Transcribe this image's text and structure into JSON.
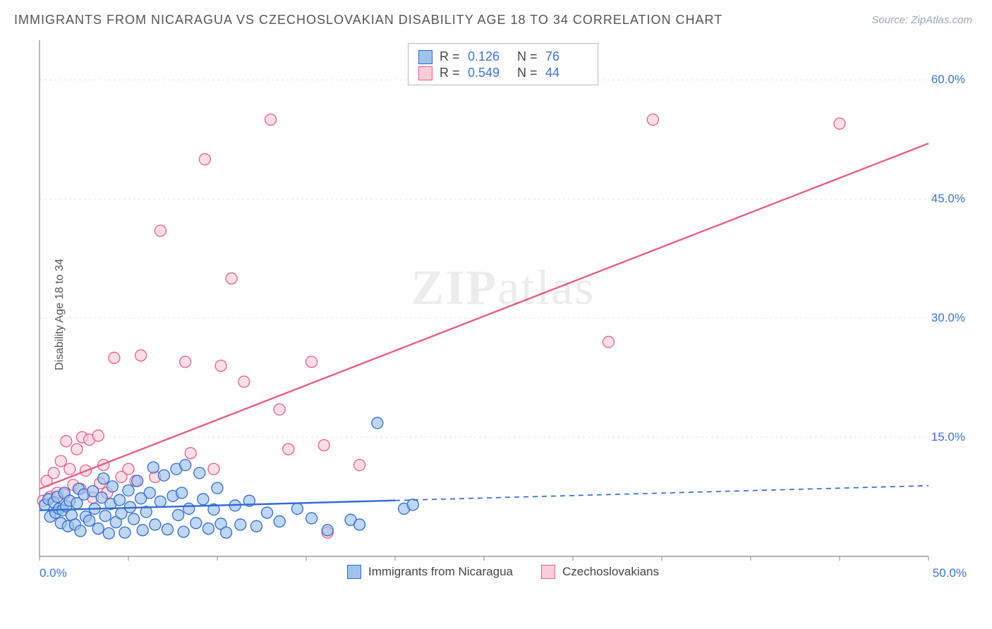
{
  "title": "IMMIGRANTS FROM NICARAGUA VS CZECHOSLOVAKIAN DISABILITY AGE 18 TO 34 CORRELATION CHART",
  "source_label": "Source: ",
  "source_site": "ZipAtlas.com",
  "ylabel": "Disability Age 18 to 34",
  "watermark_a": "ZIP",
  "watermark_b": "atlas",
  "chart": {
    "type": "scatter",
    "xlim": [
      0,
      50
    ],
    "ylim": [
      0,
      65
    ],
    "xmin_label": "0.0%",
    "xmax_label": "50.0%",
    "yticks": [
      {
        "v": 15,
        "label": "15.0%"
      },
      {
        "v": 30,
        "label": "30.0%"
      },
      {
        "v": 45,
        "label": "45.0%"
      },
      {
        "v": 60,
        "label": "60.0%"
      }
    ],
    "xticks_minor": [
      0,
      5,
      10,
      15,
      20,
      25,
      30,
      35,
      40,
      45,
      50
    ],
    "background_color": "#ffffff",
    "grid_color": "#e3e3e3",
    "axis_color": "#888888",
    "marker_radius": 8,
    "marker_stroke_width": 1.3,
    "colors": {
      "blue_fill": "#9ec2ec",
      "blue_stroke": "#2f6bd0",
      "pink_fill": "#fbcdd8",
      "pink_stroke": "#e85f88"
    },
    "series": [
      {
        "key": "nicaragua",
        "label": "Immigrants from Nicaragua",
        "color_fill": "#9ec2ec",
        "color_stroke": "#2f6bd0",
        "R": "0.126",
        "N": "76",
        "trend": {
          "x1": 0,
          "y1": 5.8,
          "x2": 50,
          "y2": 8.9,
          "solid_until_x": 20,
          "width": 2.4
        },
        "points": [
          [
            0.3,
            6.5
          ],
          [
            0.5,
            7.2
          ],
          [
            0.6,
            5.0
          ],
          [
            0.8,
            6.8
          ],
          [
            0.9,
            5.5
          ],
          [
            1.0,
            7.5
          ],
          [
            1.1,
            6.0
          ],
          [
            1.2,
            4.2
          ],
          [
            1.3,
            5.8
          ],
          [
            1.4,
            8.0
          ],
          [
            1.5,
            6.3
          ],
          [
            1.6,
            3.8
          ],
          [
            1.7,
            7.0
          ],
          [
            1.8,
            5.2
          ],
          [
            2.0,
            4.0
          ],
          [
            2.1,
            6.7
          ],
          [
            2.2,
            8.5
          ],
          [
            2.3,
            3.2
          ],
          [
            2.5,
            7.8
          ],
          [
            2.6,
            5.0
          ],
          [
            2.8,
            4.5
          ],
          [
            3.0,
            8.2
          ],
          [
            3.1,
            6.0
          ],
          [
            3.3,
            3.5
          ],
          [
            3.5,
            7.4
          ],
          [
            3.6,
            9.8
          ],
          [
            3.7,
            5.1
          ],
          [
            3.9,
            2.9
          ],
          [
            4.0,
            6.6
          ],
          [
            4.1,
            8.8
          ],
          [
            4.3,
            4.3
          ],
          [
            4.5,
            7.1
          ],
          [
            4.6,
            5.4
          ],
          [
            4.8,
            3.0
          ],
          [
            5.0,
            8.3
          ],
          [
            5.1,
            6.2
          ],
          [
            5.3,
            4.7
          ],
          [
            5.5,
            9.5
          ],
          [
            5.7,
            7.3
          ],
          [
            5.8,
            3.3
          ],
          [
            6.0,
            5.6
          ],
          [
            6.2,
            8.0
          ],
          [
            6.4,
            11.2
          ],
          [
            6.5,
            4.0
          ],
          [
            6.8,
            6.9
          ],
          [
            7.0,
            10.2
          ],
          [
            7.2,
            3.4
          ],
          [
            7.5,
            7.6
          ],
          [
            7.7,
            11.0
          ],
          [
            7.8,
            5.2
          ],
          [
            8.0,
            8.0
          ],
          [
            8.1,
            3.1
          ],
          [
            8.2,
            11.5
          ],
          [
            8.4,
            6.0
          ],
          [
            8.8,
            4.2
          ],
          [
            9.0,
            10.5
          ],
          [
            9.2,
            7.2
          ],
          [
            9.5,
            3.5
          ],
          [
            9.8,
            5.9
          ],
          [
            10.0,
            8.6
          ],
          [
            10.2,
            4.1
          ],
          [
            10.5,
            3.0
          ],
          [
            11.0,
            6.4
          ],
          [
            11.3,
            4.0
          ],
          [
            11.8,
            7.0
          ],
          [
            12.2,
            3.8
          ],
          [
            12.8,
            5.5
          ],
          [
            13.5,
            4.4
          ],
          [
            14.5,
            6.0
          ],
          [
            15.3,
            4.8
          ],
          [
            16.2,
            3.3
          ],
          [
            17.5,
            4.6
          ],
          [
            18.0,
            4.0
          ],
          [
            19.0,
            16.8
          ],
          [
            20.5,
            6.0
          ],
          [
            21.0,
            6.5
          ]
        ]
      },
      {
        "key": "czech",
        "label": "Czechoslovakians",
        "color_fill": "#fbcdd8",
        "color_stroke": "#e85f88",
        "R": "0.549",
        "N": "44",
        "trend": {
          "x1": 0,
          "y1": 8.5,
          "x2": 50,
          "y2": 52.0,
          "solid_until_x": 50,
          "width": 2.4
        },
        "points": [
          [
            0.2,
            7.0
          ],
          [
            0.4,
            9.5
          ],
          [
            0.6,
            7.5
          ],
          [
            0.8,
            10.5
          ],
          [
            1.0,
            8.0
          ],
          [
            1.2,
            12.0
          ],
          [
            1.4,
            7.8
          ],
          [
            1.5,
            14.5
          ],
          [
            1.7,
            11.0
          ],
          [
            1.9,
            9.0
          ],
          [
            2.1,
            13.5
          ],
          [
            2.3,
            8.5
          ],
          [
            2.4,
            15.0
          ],
          [
            2.6,
            10.8
          ],
          [
            2.8,
            14.7
          ],
          [
            3.0,
            7.4
          ],
          [
            3.3,
            15.2
          ],
          [
            3.4,
            9.2
          ],
          [
            3.6,
            11.5
          ],
          [
            3.8,
            8.0
          ],
          [
            4.2,
            25.0
          ],
          [
            4.6,
            10.0
          ],
          [
            5.0,
            11.0
          ],
          [
            5.4,
            9.5
          ],
          [
            5.7,
            25.3
          ],
          [
            6.5,
            10.0
          ],
          [
            6.8,
            41.0
          ],
          [
            8.2,
            24.5
          ],
          [
            8.5,
            13.0
          ],
          [
            9.3,
            50.0
          ],
          [
            9.8,
            11.0
          ],
          [
            10.2,
            24.0
          ],
          [
            10.8,
            35.0
          ],
          [
            11.5,
            22.0
          ],
          [
            13.0,
            55.0
          ],
          [
            13.5,
            18.5
          ],
          [
            14.0,
            13.5
          ],
          [
            15.3,
            24.5
          ],
          [
            16.0,
            14.0
          ],
          [
            16.2,
            3.0
          ],
          [
            18.0,
            11.5
          ],
          [
            32.0,
            27.0
          ],
          [
            34.5,
            55.0
          ],
          [
            45.0,
            54.5
          ]
        ]
      }
    ]
  },
  "legend_top_label_R": "R  =",
  "legend_top_label_N": "N  ="
}
